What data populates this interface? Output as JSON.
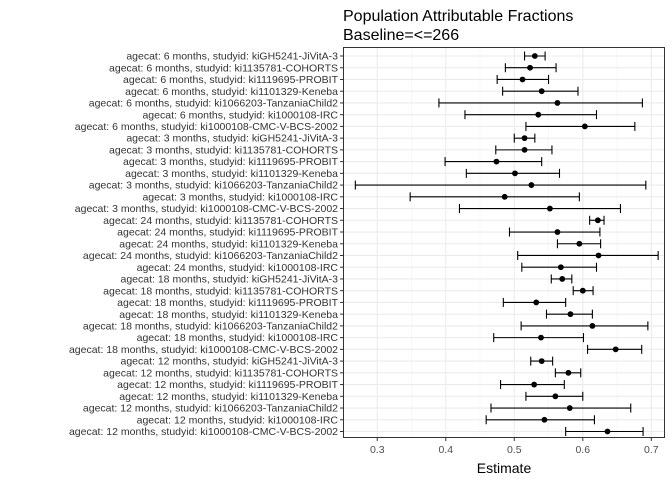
{
  "chart_data": {
    "type": "forest",
    "title": "Population Attributable Fractions",
    "subtitle": "Baseline=<=266",
    "xlabel": "Estimate",
    "ylabel": "",
    "xlim": [
      0.25,
      0.72
    ],
    "xticks": [
      "0.3",
      "0.4",
      "0.5",
      "0.6",
      "0.7"
    ],
    "grid": true,
    "colors": {
      "point": "#000000",
      "grid": "#ebebeb",
      "border": "#333333"
    },
    "rows": [
      {
        "label": "agecat: 6 months, studyid: kiGH5241-JiVitA-3",
        "estimate": 0.53,
        "lower": 0.515,
        "upper": 0.545
      },
      {
        "label": "agecat: 6 months, studyid: ki1135781-COHORTS",
        "estimate": 0.523,
        "lower": 0.487,
        "upper": 0.561
      },
      {
        "label": "agecat: 6 months, studyid: ki1119695-PROBIT",
        "estimate": 0.512,
        "lower": 0.475,
        "upper": 0.55
      },
      {
        "label": "agecat: 6 months, studyid: ki1101329-Keneba",
        "estimate": 0.54,
        "lower": 0.483,
        "upper": 0.593
      },
      {
        "label": "agecat: 6 months, studyid: ki1066203-TanzaniaChild2",
        "estimate": 0.563,
        "lower": 0.39,
        "upper": 0.687
      },
      {
        "label": "agecat: 6 months, studyid: ki1000108-IRC",
        "estimate": 0.535,
        "lower": 0.428,
        "upper": 0.62
      },
      {
        "label": "agecat: 6 months, studyid: ki1000108-CMC-V-BCS-2002",
        "estimate": 0.603,
        "lower": 0.517,
        "upper": 0.676
      },
      {
        "label": "agecat: 3 months, studyid: kiGH5241-JiVitA-3",
        "estimate": 0.515,
        "lower": 0.5,
        "upper": 0.53
      },
      {
        "label": "agecat: 3 months, studyid: ki1135781-COHORTS",
        "estimate": 0.515,
        "lower": 0.473,
        "upper": 0.555
      },
      {
        "label": "agecat: 3 months, studyid: ki1119695-PROBIT",
        "estimate": 0.474,
        "lower": 0.399,
        "upper": 0.54
      },
      {
        "label": "agecat: 3 months, studyid: ki1101329-Keneba",
        "estimate": 0.501,
        "lower": 0.43,
        "upper": 0.566
      },
      {
        "label": "agecat: 3 months, studyid: ki1066203-TanzaniaChild2",
        "estimate": 0.525,
        "lower": 0.268,
        "upper": 0.692
      },
      {
        "label": "agecat: 3 months, studyid: ki1000108-IRC",
        "estimate": 0.486,
        "lower": 0.348,
        "upper": 0.595
      },
      {
        "label": "agecat: 3 months, studyid: ki1000108-CMC-V-BCS-2002",
        "estimate": 0.552,
        "lower": 0.42,
        "upper": 0.655
      },
      {
        "label": "agecat: 24 months, studyid: ki1135781-COHORTS",
        "estimate": 0.622,
        "lower": 0.61,
        "upper": 0.631
      },
      {
        "label": "agecat: 24 months, studyid: ki1119695-PROBIT",
        "estimate": 0.563,
        "lower": 0.493,
        "upper": 0.625
      },
      {
        "label": "agecat: 24 months, studyid: ki1101329-Keneba",
        "estimate": 0.595,
        "lower": 0.563,
        "upper": 0.626
      },
      {
        "label": "agecat: 24 months, studyid: ki1066203-TanzaniaChild2",
        "estimate": 0.623,
        "lower": 0.505,
        "upper": 0.71
      },
      {
        "label": "agecat: 24 months, studyid: ki1000108-IRC",
        "estimate": 0.568,
        "lower": 0.511,
        "upper": 0.62
      },
      {
        "label": "agecat: 18 months, studyid: kiGH5241-JiVitA-3",
        "estimate": 0.57,
        "lower": 0.554,
        "upper": 0.584
      },
      {
        "label": "agecat: 18 months, studyid: ki1135781-COHORTS",
        "estimate": 0.6,
        "lower": 0.586,
        "upper": 0.615
      },
      {
        "label": "agecat: 18 months, studyid: ki1119695-PROBIT",
        "estimate": 0.532,
        "lower": 0.484,
        "upper": 0.575
      },
      {
        "label": "agecat: 18 months, studyid: ki1101329-Keneba",
        "estimate": 0.582,
        "lower": 0.547,
        "upper": 0.614
      },
      {
        "label": "agecat: 18 months, studyid: ki1066203-TanzaniaChild2",
        "estimate": 0.614,
        "lower": 0.51,
        "upper": 0.695
      },
      {
        "label": "agecat: 18 months, studyid: ki1000108-IRC",
        "estimate": 0.539,
        "lower": 0.47,
        "upper": 0.601
      },
      {
        "label": "agecat: 18 months, studyid: ki1000108-CMC-V-BCS-2002",
        "estimate": 0.648,
        "lower": 0.607,
        "upper": 0.686
      },
      {
        "label": "agecat: 12 months, studyid: kiGH5241-JiVitA-3",
        "estimate": 0.54,
        "lower": 0.524,
        "upper": 0.556
      },
      {
        "label": "agecat: 12 months, studyid: ki1135781-COHORTS",
        "estimate": 0.579,
        "lower": 0.56,
        "upper": 0.597
      },
      {
        "label": "agecat: 12 months, studyid: ki1119695-PROBIT",
        "estimate": 0.529,
        "lower": 0.48,
        "upper": 0.573
      },
      {
        "label": "agecat: 12 months, studyid: ki1101329-Keneba",
        "estimate": 0.56,
        "lower": 0.517,
        "upper": 0.6
      },
      {
        "label": "agecat: 12 months, studyid: ki1066203-TanzaniaChild2",
        "estimate": 0.581,
        "lower": 0.466,
        "upper": 0.67
      },
      {
        "label": "agecat: 12 months, studyid: ki1000108-IRC",
        "estimate": 0.544,
        "lower": 0.459,
        "upper": 0.617
      },
      {
        "label": "agecat: 12 months, studyid: ki1000108-CMC-V-BCS-2002",
        "estimate": 0.636,
        "lower": 0.575,
        "upper": 0.688
      }
    ]
  }
}
